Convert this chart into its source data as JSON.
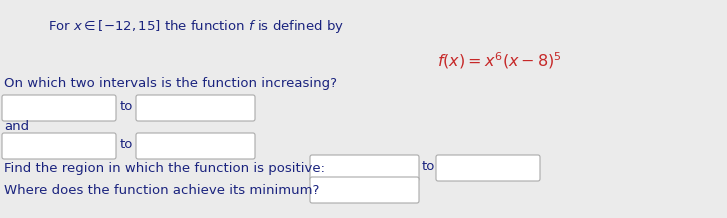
{
  "bg_color": "#ebebeb",
  "text_color": "#1a237e",
  "box_color": "#ffffff",
  "box_edge_color": "#aaaaaa",
  "title": "For $x \\in [-12, 15]$ the function $f$ is defined by",
  "formula": "$f(x) = x^6(x - 8)^5$",
  "q1": "On which two intervals is the function increasing?",
  "q2_label": "and",
  "q3_prefix": "Find the region in which the function is positive:",
  "q4": "Where does the function achieve its minimum?",
  "to_label": "to",
  "figsize": [
    7.27,
    2.18
  ],
  "dpi": 100,
  "title_color": "#1a237e",
  "formula_color": "#c62828",
  "q_color": "#1a237e",
  "inline_color": "#1a237e"
}
